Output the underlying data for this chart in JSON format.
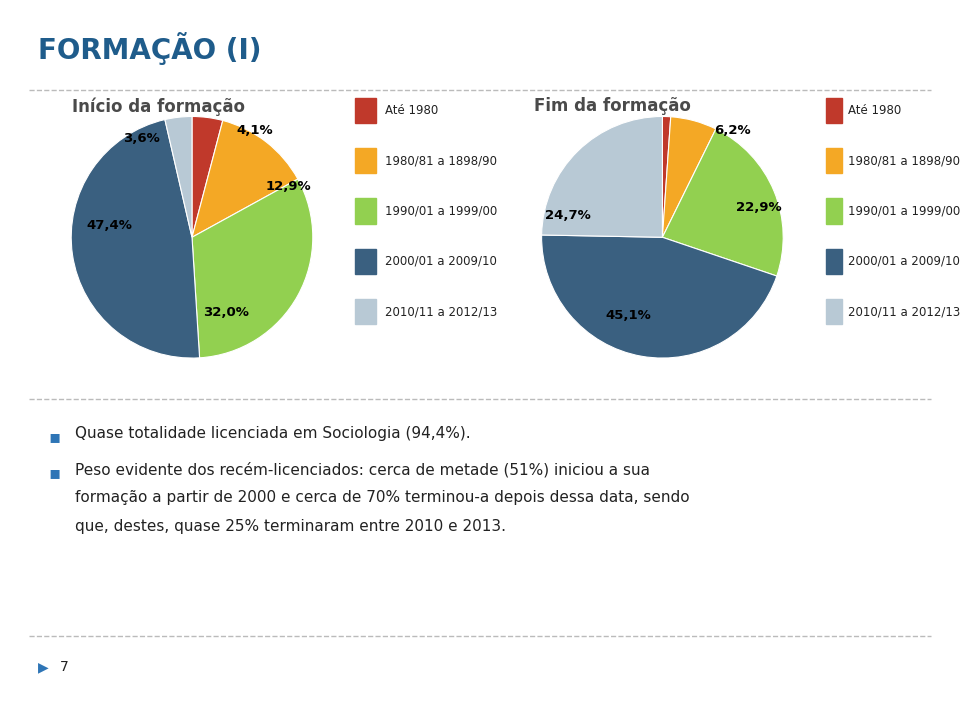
{
  "title": "FORMAÇÃO (I)",
  "title_color": "#1F5C8B",
  "background_color": "#FFFFFF",
  "pie1_title": "Início da formação",
  "pie1_title_color": "#4A4A4A",
  "pie1_values": [
    4.1,
    12.9,
    32.0,
    47.4,
    3.6
  ],
  "pie1_labels": [
    "4,1%",
    "12,9%",
    "32,0%",
    "47,4%",
    "3,6%"
  ],
  "pie1_colors": [
    "#C0392B",
    "#F4A825",
    "#92D050",
    "#3A6080",
    "#B8C9D5"
  ],
  "pie2_title": "Fim da formação",
  "pie2_title_color": "#4A4A4A",
  "pie2_values": [
    1.1,
    6.2,
    22.9,
    45.1,
    24.7
  ],
  "pie2_labels": [
    "",
    "6,2%",
    "22,9%",
    "45,1%",
    "24,7%"
  ],
  "pie2_colors": [
    "#C0392B",
    "#F4A825",
    "#92D050",
    "#3A6080",
    "#B8C9D5"
  ],
  "legend_labels": [
    "Até 1980",
    "1980/81 a 1898/90",
    "1990/01 a 1999/00",
    "2000/01 a 2009/10",
    "2010/11 a 2012/13"
  ],
  "legend_colors": [
    "#C0392B",
    "#F4A825",
    "#92D050",
    "#3A6080",
    "#B8C9D5"
  ],
  "bullet1": "Quase totalidade licenciada em Sociologia (94,4%).",
  "bullet2_line1": "Peso evidente dos recém-licenciados: cerca de metade (51%) iniciou a sua",
  "bullet2_line2": "formação a partir de 2000 e cerca de 70% terminou-a depois dessa data, sendo",
  "bullet2_line3": "que, destes, quase 25% terminaram entre 2010 e 2013.",
  "footer_num": "7",
  "divider_color": "#BBBBBB",
  "bullet_color": "#2E75B6",
  "text_color": "#222222"
}
